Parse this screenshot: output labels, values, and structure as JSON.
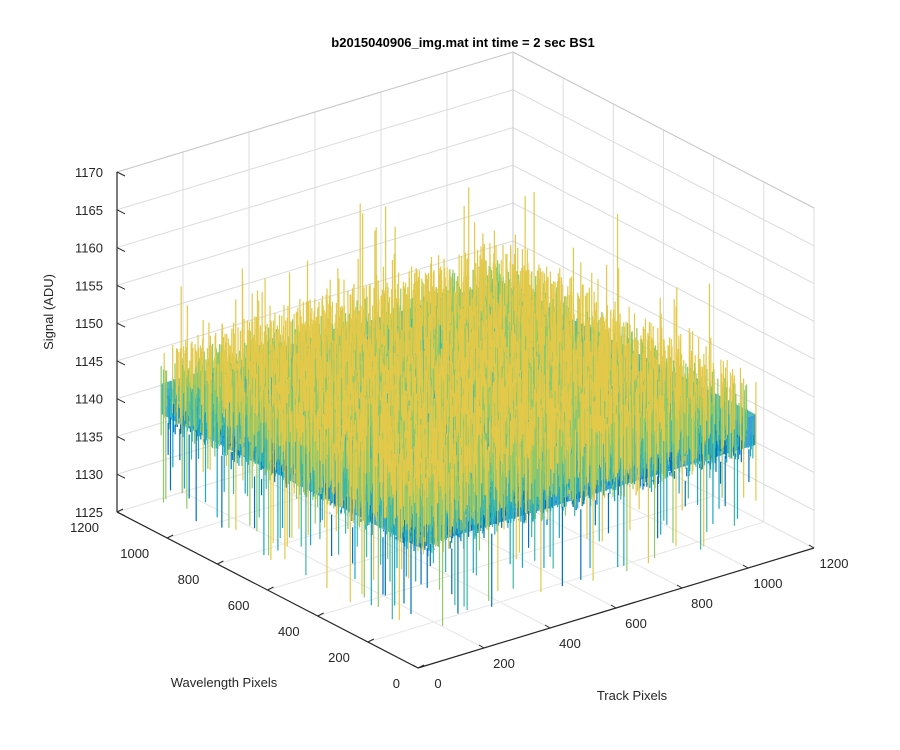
{
  "chart_data": {
    "type": "surface",
    "title": "b2015040906_img.mat int time = 2 sec   BS1",
    "xlabel": "Track Pixels",
    "ylabel": "Wavelength Pixels",
    "zlabel": "Signal (ADU)",
    "x_ticks": [
      "0",
      "200",
      "400",
      "600",
      "800",
      "1000",
      "1200"
    ],
    "y_ticks": [
      "0",
      "200",
      "400",
      "600",
      "800",
      "1000",
      "1200"
    ],
    "z_ticks": [
      "1125",
      "1130",
      "1135",
      "1140",
      "1145",
      "1150",
      "1155",
      "1160",
      "1165",
      "1170"
    ],
    "xlim": [
      0,
      1200
    ],
    "ylim": [
      0,
      1200
    ],
    "zlim": [
      1125,
      1170
    ],
    "surface_x_range": [
      0,
      1024
    ],
    "surface_y_range": [
      0,
      1024
    ],
    "surface_mean": 1145,
    "surface_noise_range": [
      1128,
      1165
    ],
    "colormap": [
      "#0072bd",
      "#1aa8c8",
      "#3db8a8",
      "#8ec96a",
      "#e3c94a"
    ],
    "grid": true
  }
}
